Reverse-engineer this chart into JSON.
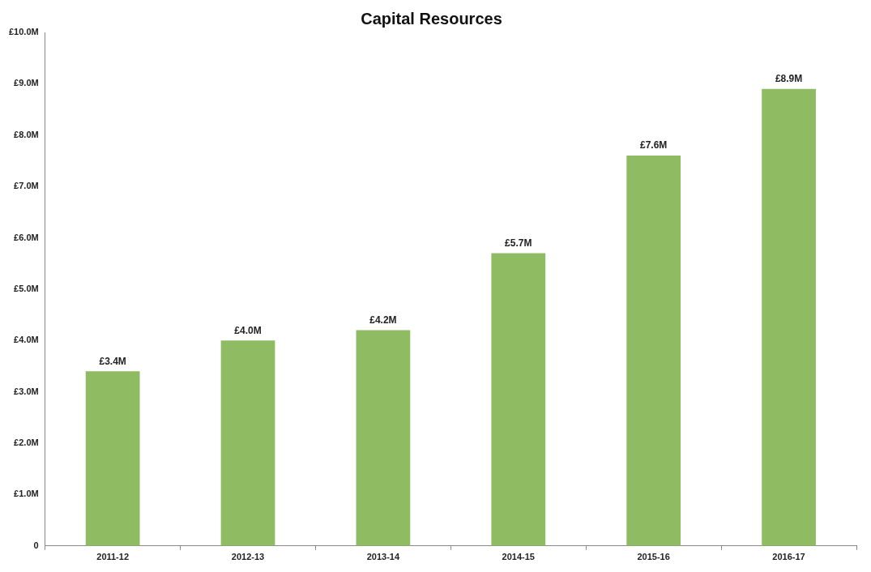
{
  "chart_data": {
    "type": "bar",
    "title": "Capital Resources",
    "categories": [
      "2011-12",
      "2012-13",
      "2013-14",
      "2014-15",
      "2015-16",
      "2016-17"
    ],
    "values": [
      3.4,
      4.0,
      4.2,
      5.7,
      7.6,
      8.9
    ],
    "value_labels": [
      "£3.4M",
      "£4.0M",
      "£4.2M",
      "£5.7M",
      "£7.6M",
      "£8.9M"
    ],
    "color": "#8fbc62",
    "ylim": [
      0,
      10
    ],
    "yticks": [
      {
        "value": 0,
        "label": "0"
      },
      {
        "value": 1,
        "label": "£1.0M"
      },
      {
        "value": 2,
        "label": "£2.0M"
      },
      {
        "value": 3,
        "label": "£3.0M"
      },
      {
        "value": 4,
        "label": "£4.0M"
      },
      {
        "value": 5,
        "label": "£5.0M"
      },
      {
        "value": 6,
        "label": "£6.0M"
      },
      {
        "value": 7,
        "label": "£7.0M"
      },
      {
        "value": 8,
        "label": "£8.0M"
      },
      {
        "value": 9,
        "label": "£9.0M"
      },
      {
        "value": 10,
        "label": "£10.0M"
      }
    ],
    "grid": false
  }
}
